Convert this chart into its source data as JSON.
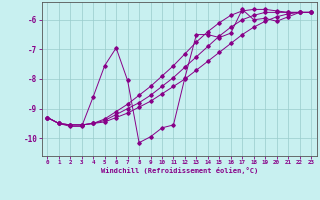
{
  "xlabel": "Windchill (Refroidissement éolien,°C)",
  "bg_color": "#c8f0f0",
  "line_color": "#880088",
  "grid_color": "#99cccc",
  "spine_color": "#555555",
  "xlim": [
    -0.5,
    23.5
  ],
  "ylim": [
    -10.6,
    -5.4
  ],
  "yticks": [
    -10,
    -9,
    -8,
    -7,
    -6
  ],
  "xticks": [
    0,
    1,
    2,
    3,
    4,
    5,
    6,
    7,
    8,
    9,
    10,
    11,
    12,
    13,
    14,
    15,
    16,
    17,
    18,
    19,
    20,
    21,
    22,
    23
  ],
  "line1_x": [
    0,
    1,
    2,
    3,
    4,
    5,
    6,
    7,
    8,
    9,
    10,
    11,
    12,
    13,
    14,
    15,
    16,
    17,
    18,
    19,
    20,
    21,
    22,
    23
  ],
  "line1": [
    -9.3,
    -9.5,
    -9.6,
    -9.6,
    -8.6,
    -7.55,
    -6.95,
    -8.05,
    -10.15,
    -9.95,
    -9.65,
    -9.55,
    -7.95,
    -6.5,
    -6.5,
    -6.6,
    -6.45,
    -5.65,
    -6.0,
    -5.95,
    -6.05,
    -5.9,
    -5.75,
    -5.75
  ],
  "line2_x": [
    0,
    1,
    2,
    3,
    4,
    5,
    6,
    7,
    8,
    9,
    10,
    11,
    12,
    13,
    14,
    15,
    16,
    17,
    18,
    19,
    20,
    21,
    22,
    23
  ],
  "line2": [
    -9.3,
    -9.5,
    -9.55,
    -9.55,
    -9.5,
    -9.45,
    -9.3,
    -9.15,
    -8.95,
    -8.75,
    -8.5,
    -8.25,
    -8.0,
    -7.7,
    -7.4,
    -7.1,
    -6.8,
    -6.5,
    -6.25,
    -6.05,
    -5.9,
    -5.8,
    -5.75,
    -5.75
  ],
  "line3_x": [
    0,
    1,
    2,
    3,
    4,
    5,
    6,
    7,
    8,
    9,
    10,
    11,
    12,
    13,
    14,
    15,
    16,
    17,
    18,
    19,
    20,
    21,
    22,
    23
  ],
  "line3": [
    -9.3,
    -9.5,
    -9.55,
    -9.55,
    -9.5,
    -9.4,
    -9.2,
    -9.0,
    -8.8,
    -8.55,
    -8.25,
    -7.95,
    -7.6,
    -7.25,
    -6.9,
    -6.55,
    -6.25,
    -6.0,
    -5.85,
    -5.75,
    -5.75,
    -5.75,
    -5.75,
    -5.75
  ],
  "line4_x": [
    0,
    1,
    2,
    3,
    4,
    5,
    6,
    7,
    8,
    9,
    10,
    11,
    12,
    13,
    14,
    15,
    16,
    17,
    18,
    19,
    20,
    21,
    22,
    23
  ],
  "line4": [
    -9.3,
    -9.5,
    -9.55,
    -9.55,
    -9.5,
    -9.35,
    -9.1,
    -8.85,
    -8.55,
    -8.25,
    -7.9,
    -7.55,
    -7.15,
    -6.75,
    -6.4,
    -6.1,
    -5.85,
    -5.7,
    -5.65,
    -5.65,
    -5.7,
    -5.75,
    -5.75,
    -5.75
  ]
}
